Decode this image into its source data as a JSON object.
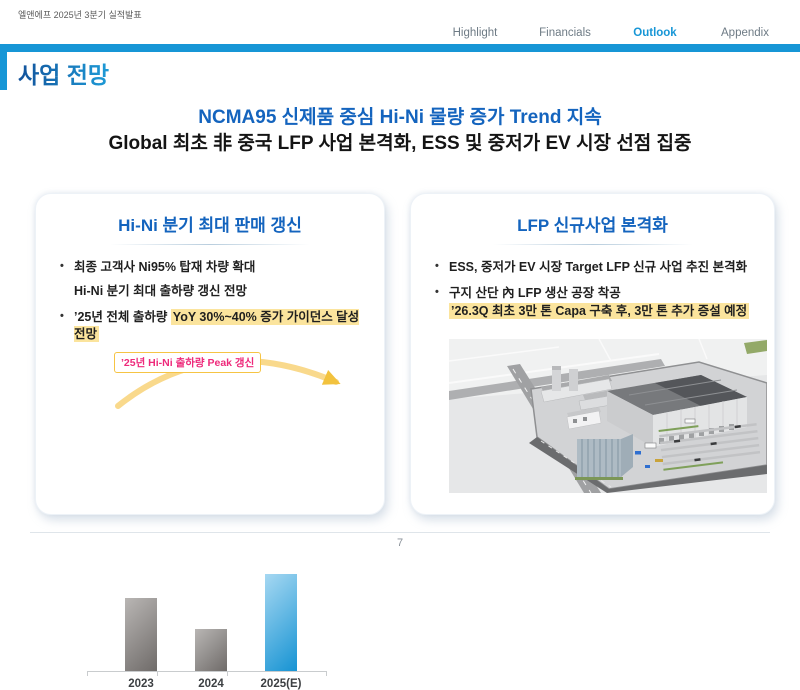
{
  "meta": {
    "doc_title": "엘앤에프 2025년 3분기 실적발표",
    "page_number": "7"
  },
  "nav": {
    "items": [
      {
        "label": "Highlight",
        "active": false
      },
      {
        "label": "Financials",
        "active": false
      },
      {
        "label": "Outlook",
        "active": true
      },
      {
        "label": "Appendix",
        "active": false
      }
    ]
  },
  "header": {
    "section_title": "사업 전망"
  },
  "headline": {
    "line1": "NCMA95 신제품 중심 Hi-Ni 물량 증가 Trend 지속",
    "line2": "Global 최초 非 중국 LFP 사업 본격화, ESS 및 중저가 EV 시장 선점 집중"
  },
  "left_card": {
    "title": "Hi-Ni 분기 최대 판매 갱신",
    "bullet1_line1": "최종 고객사 Ni95% 탑재 차량 확대",
    "bullet1_line2": "Hi-Ni 분기 최대 출하량 갱신 전망",
    "bullet2_prefix": "’25년 전체 출하량 ",
    "bullet2_highlight": "YoY 30%~40% 증가 가이던스 달성 전망",
    "callout": "’25년 Hi-Ni 출하량 Peak 갱신"
  },
  "right_card": {
    "title": "LFP 신규사업 본격화",
    "bullet1": "ESS, 중저가 EV 시장 Target  LFP 신규 사업 추진 본격화",
    "bullet2": "구지 산단 內 LFP 생산 공장 착공",
    "bullet2_highlight": "’26.3Q 최초 3만 톤 Capa 구축 후, 3만 톤 추가 증설 예정",
    "image": "lfp-factory-3d-rendering"
  },
  "chart_data": {
    "type": "bar",
    "title": "Hi-Ni 출하량 (연도별, 상대값 — 축 값 미표기)",
    "categories": [
      "2023",
      "2024",
      "2025(E)"
    ],
    "values": [
      75,
      43,
      100
    ],
    "xlabel": "",
    "ylabel": "",
    "ylim": [
      0,
      100
    ],
    "grid": false,
    "annotation": "’25년 Hi-Ni 출하량 Peak 갱신",
    "bar_gradients": [
      [
        "#b9b6b4",
        "#6f6b69"
      ],
      [
        "#b9b6b4",
        "#6f6b69"
      ],
      [
        "#a6d8f2",
        "#1693d3"
      ]
    ]
  },
  "colors": {
    "accent_blue": "#1796d6",
    "title_blue": "#1464be",
    "highlight_yellow": "#fbe49d",
    "callout_pink": "#ee2a7b",
    "callout_border": "#f6c444",
    "arrow_yellow": "#f9d98c"
  }
}
